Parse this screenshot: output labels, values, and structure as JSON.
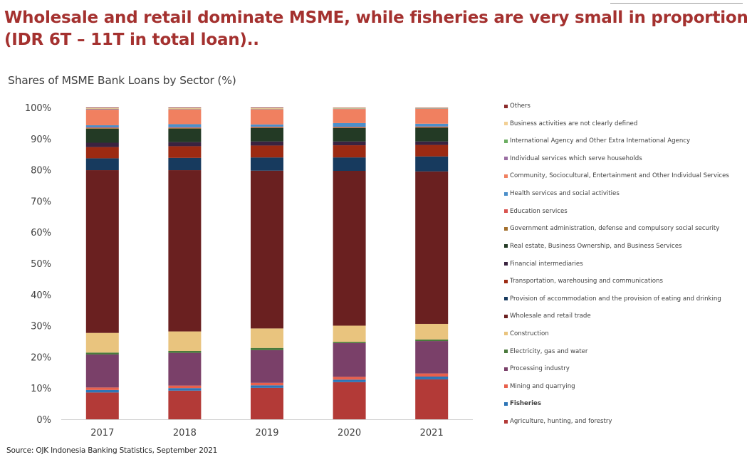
{
  "headline": {
    "line1": "Wholesale and retail dominate MSME, while fisheries are very small in proportion",
    "line2": "(IDR 6T – 11T in total loan).."
  },
  "source": "Source: OJK Indonesia Banking Statistics, September 2021",
  "chart_data": {
    "type": "bar",
    "stacked": true,
    "title": "Shares of MSME Bank Loans by Sector (%)",
    "xlabel": "",
    "ylabel": "",
    "ylim": [
      0,
      100
    ],
    "yticks": [
      "0%",
      "10%",
      "20%",
      "30%",
      "40%",
      "50%",
      "60%",
      "70%",
      "80%",
      "90%",
      "100%"
    ],
    "categories": [
      "2017",
      "2018",
      "2019",
      "2020",
      "2021"
    ],
    "grid": false,
    "legend_position": "right",
    "series": [
      {
        "name": "Agriculture, hunting, and forestry",
        "color": "#b33a37",
        "values": [
          8.6,
          9.1,
          10.0,
          11.9,
          12.8
        ]
      },
      {
        "name": "Fisheries",
        "color": "#2e75b6",
        "values": [
          0.8,
          0.8,
          0.8,
          0.8,
          0.9
        ]
      },
      {
        "name": "Mining and quarrying",
        "color": "#e8604c",
        "values": [
          0.8,
          0.8,
          0.8,
          0.9,
          1.0
        ]
      },
      {
        "name": "Processing industry",
        "color": "#7a4069",
        "values": [
          10.6,
          10.4,
          10.4,
          10.8,
          10.4
        ]
      },
      {
        "name": "Electricity, gas and water",
        "color": "#4a7a3c",
        "values": [
          0.6,
          0.6,
          0.7,
          0.4,
          0.5
        ]
      },
      {
        "name": "Construction",
        "color": "#e9c47e",
        "values": [
          6.3,
          6.2,
          6.2,
          5.2,
          5.0
        ]
      },
      {
        "name": "Wholesale and retail trade",
        "color": "#6a2020",
        "values": [
          52.2,
          51.2,
          50.2,
          49.6,
          48.9
        ]
      },
      {
        "name": "Provision of accommodation  and the provision of eating and drinking",
        "color": "#173a5e",
        "values": [
          3.8,
          3.9,
          4.2,
          4.3,
          4.8
        ]
      },
      {
        "name": "Transportation, warehousing and communications",
        "color": "#9c2a12",
        "values": [
          3.6,
          3.7,
          3.8,
          3.9,
          3.7
        ]
      },
      {
        "name": "Financial intermediaries",
        "color": "#3a2340",
        "values": [
          1.4,
          1.3,
          1.3,
          1.2,
          1.1
        ]
      },
      {
        "name": "Real estate, Business Ownership, and Business Services",
        "color": "#233a25",
        "values": [
          4.5,
          4.3,
          4.3,
          4.3,
          4.4
        ]
      },
      {
        "name": "Government administration, defense and compulsory social security",
        "color": "#a36f2c",
        "values": [
          0.2,
          0.2,
          0.2,
          0.2,
          0.2
        ]
      },
      {
        "name": "Education services",
        "color": "#d9534f",
        "values": [
          0.2,
          0.2,
          0.2,
          0.2,
          0.2
        ]
      },
      {
        "name": "Health services and social activities",
        "color": "#4c8fc9",
        "values": [
          0.7,
          1.0,
          0.7,
          1.2,
          0.9
        ]
      },
      {
        "name": "Community, Sociocultural, Entertainment and Other Individual Services",
        "color": "#f08060",
        "values": [
          5.0,
          4.7,
          4.8,
          4.5,
          4.8
        ]
      },
      {
        "name": "Individual services which serve households",
        "color": "#9b6fa3",
        "values": [
          0.2,
          0.1,
          0.1,
          0.1,
          0.1
        ]
      },
      {
        "name": "International Agency and Other Extra  International Agency",
        "color": "#6cae62",
        "values": [
          0.1,
          0.1,
          0.1,
          0.1,
          0.1
        ]
      },
      {
        "name": "Business activities are not clearly defined",
        "color": "#f2d095",
        "values": [
          0.2,
          0.2,
          0.2,
          0.2,
          0.1
        ]
      },
      {
        "name": "Others",
        "color": "#8b2b2b",
        "values": [
          0.2,
          0.2,
          0.2,
          0.1,
          0.1
        ]
      }
    ]
  }
}
